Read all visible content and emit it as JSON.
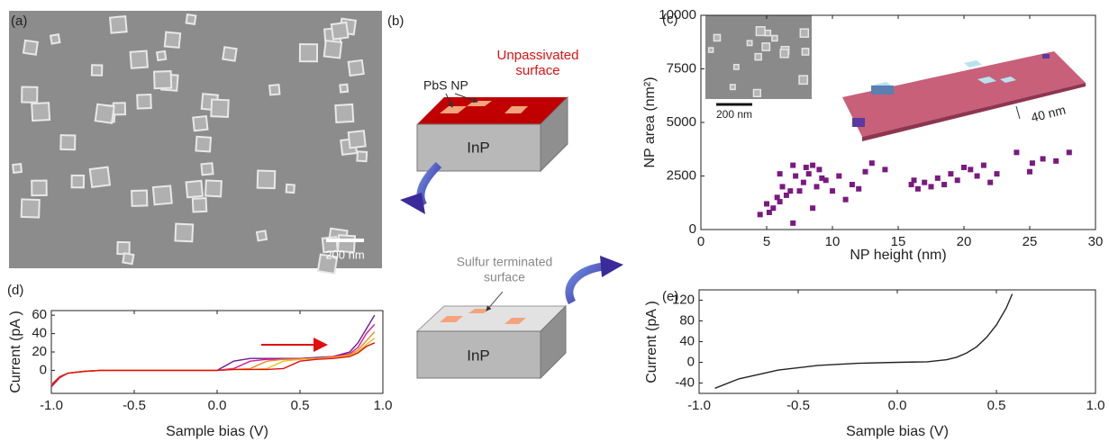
{
  "figure": {
    "panel_labels": [
      "(a)",
      "(b)",
      "(c)",
      "(d)",
      "(e)"
    ],
    "a": {
      "scale_bar": "200 nm"
    },
    "b": {
      "np_label": "PbS NP",
      "unpassivated": [
        "Unpassivated",
        "surface"
      ],
      "top_substrate": "InP",
      "sulfur": [
        "Sulfur terminated",
        "surface"
      ],
      "bottom_substrate": "InP"
    },
    "c_inset": {
      "sem_scale_bar": "200 nm",
      "afm_scale_bar": "40 nm"
    }
  },
  "chart_data": [
    {
      "type": "scatter",
      "xlabel": "NP height  (nm)",
      "ylabel": "NP area (nm²)",
      "color": "#7a1a80",
      "x": [
        4.5,
        5,
        5.2,
        5.5,
        5.8,
        6,
        6.2,
        6.5,
        6.8,
        7,
        7,
        7.2,
        7.5,
        7.8,
        8,
        8.2,
        8.5,
        8.8,
        9,
        9.2,
        9.5,
        10,
        10.5,
        11,
        11.5,
        12,
        12.5,
        13,
        14,
        16,
        16.2,
        16.5,
        17,
        17.5,
        18,
        18.5,
        19,
        19.5,
        20,
        20.5,
        21,
        21.5,
        22,
        22.5,
        24,
        25,
        25.2,
        26,
        27,
        28,
        8.5,
        6
      ],
      "values": [
        700,
        1200,
        800,
        1000,
        1500,
        1300,
        2000,
        1600,
        1800,
        300,
        3000,
        2500,
        1800,
        2200,
        2900,
        2600,
        3000,
        2000,
        2800,
        2400,
        2300,
        1800,
        2500,
        1400,
        2100,
        1900,
        2700,
        3100,
        2800,
        2100,
        2300,
        1900,
        2200,
        2000,
        2400,
        2100,
        2600,
        2300,
        2900,
        2800,
        2500,
        3000,
        2200,
        2600,
        3600,
        2700,
        3100,
        3300,
        3200,
        3600,
        1000,
        2600
      ],
      "xlim": [
        0,
        30
      ],
      "xticks": [
        0,
        5,
        10,
        15,
        20,
        25,
        30
      ],
      "ylim": [
        0,
        10000
      ],
      "yticks": [
        0,
        2500,
        5000,
        7500,
        10000
      ]
    },
    {
      "type": "line",
      "xlabel": "Sample bias (V)",
      "ylabel": "Current (pA )",
      "x": [
        -1.0,
        -0.95,
        -0.9,
        -0.8,
        -0.7,
        -0.5,
        0.0,
        0.1,
        0.2,
        0.3,
        0.4,
        0.5,
        0.6,
        0.7,
        0.8,
        0.85,
        0.9,
        0.95
      ],
      "series": [
        {
          "color": "#6a1b9a",
          "values": [
            -18,
            -8,
            -3,
            -1,
            0,
            0,
            0,
            10,
            13,
            13,
            13,
            13,
            14,
            15,
            20,
            30,
            45,
            60
          ]
        },
        {
          "color": "#d81b8c",
          "values": [
            -17,
            -8,
            -3,
            -1,
            0,
            0,
            0,
            2,
            10,
            12,
            12,
            13,
            13,
            15,
            18,
            25,
            40,
            50
          ]
        },
        {
          "color": "#f08a24",
          "values": [
            -16,
            -7,
            -3,
            -1,
            0,
            0,
            0,
            1,
            2,
            10,
            12,
            12,
            13,
            14,
            17,
            22,
            32,
            42
          ]
        },
        {
          "color": "#e6c21a",
          "values": [
            -15,
            -7,
            -3,
            -1,
            0,
            0,
            0,
            1,
            1,
            2,
            10,
            12,
            13,
            14,
            16,
            20,
            28,
            35
          ]
        },
        {
          "color": "#e01010",
          "values": [
            -16,
            -7,
            -3,
            -1,
            0,
            0,
            0,
            1,
            1,
            1,
            2,
            10,
            12,
            13,
            15,
            19,
            26,
            30
          ]
        }
      ],
      "xlim": [
        -1,
        1
      ],
      "xticks": [
        {
          "value": -1,
          "label": "-1.0"
        },
        {
          "value": -0.5,
          "label": "-0.5"
        },
        {
          "value": 0,
          "label": "0.0"
        },
        {
          "value": 0.5,
          "label": "0.5"
        },
        {
          "value": 1,
          "label": "1.0"
        }
      ],
      "ylim": [
        -25,
        65
      ],
      "yticks": [
        0,
        20,
        40,
        60
      ]
    },
    {
      "type": "line",
      "xlabel": "Sample bias (V)",
      "ylabel": "Current (pA )",
      "x": [
        -0.92,
        -0.8,
        -0.6,
        -0.4,
        -0.2,
        0,
        0.15,
        0.25,
        0.3,
        0.35,
        0.4,
        0.45,
        0.5,
        0.55,
        0.58
      ],
      "series": [
        {
          "color": "#222222",
          "values": [
            -50,
            -32,
            -15,
            -6,
            -2,
            0,
            1,
            5,
            10,
            18,
            30,
            48,
            72,
            105,
            132
          ]
        }
      ],
      "xlim": [
        -1,
        1
      ],
      "xticks": [
        {
          "value": -1,
          "label": "-1.0"
        },
        {
          "value": -0.5,
          "label": "-0.5"
        },
        {
          "value": 0,
          "label": "0.0"
        },
        {
          "value": 0.5,
          "label": "0.5"
        },
        {
          "value": 1,
          "label": "1.0"
        }
      ],
      "ylim": [
        -60,
        140
      ],
      "yticks": [
        -40,
        0,
        40,
        80,
        120
      ]
    }
  ]
}
